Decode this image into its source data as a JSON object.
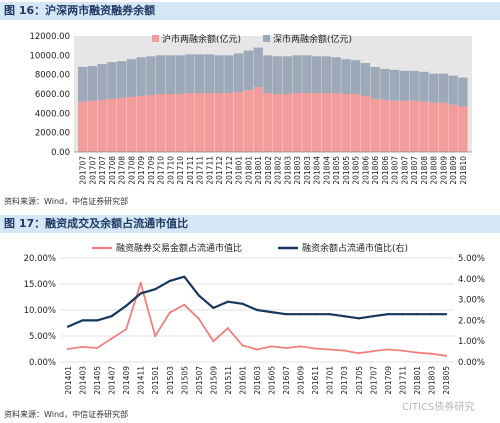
{
  "fig16": {
    "title": "图 16：沪深两市融资融券余额",
    "source": "资料来源：Wind，中信证券研究部"
  },
  "fig17": {
    "title": "图 17：融资成交及余额占流通市值比",
    "source": "资料来源：Wind，中信证券研究部"
  },
  "watermark": "CITICS债券研究",
  "chart_data": [
    {
      "type": "bar",
      "stacked": true,
      "title": "",
      "xlabel": "",
      "ylabel": "",
      "ylim": [
        0,
        12000
      ],
      "yticks": [
        "0.00",
        "2000.00",
        "4000.00",
        "6000.00",
        "8000.00",
        "10000.00",
        "12000.00"
      ],
      "grid": false,
      "legend_position": "top-center",
      "categories": [
        "201707",
        "201707",
        "201707",
        "201708",
        "201708",
        "201708",
        "201709",
        "201709",
        "201710",
        "201710",
        "201710",
        "201711",
        "201711",
        "201711",
        "201712",
        "201712",
        "201801",
        "201801",
        "201801",
        "201802",
        "201802",
        "201803",
        "201803",
        "201803",
        "201804",
        "201804",
        "201805",
        "201805",
        "201805",
        "201806",
        "201806",
        "201806",
        "201807",
        "201807",
        "201807",
        "201808",
        "201808",
        "201809",
        "201809",
        "201810"
      ],
      "series": [
        {
          "name": "沪市两融余额(亿元)",
          "color": "#f29c9c",
          "values": [
            5200,
            5300,
            5400,
            5500,
            5600,
            5700,
            5800,
            5900,
            6000,
            6000,
            6000,
            6100,
            6100,
            6100,
            6100,
            6100,
            6200,
            6400,
            6700,
            6100,
            6000,
            6000,
            6100,
            6100,
            6100,
            6100,
            6100,
            6000,
            6000,
            5800,
            5500,
            5400,
            5300,
            5300,
            5300,
            5200,
            5100,
            5100,
            4900,
            4700
          ]
        },
        {
          "name": "深市两融余额(亿元)",
          "color": "#9da8b8",
          "values": [
            3600,
            3600,
            3700,
            3800,
            3800,
            3900,
            4000,
            4000,
            4000,
            4000,
            4000,
            4000,
            4000,
            4000,
            3900,
            3900,
            4000,
            4100,
            4100,
            3900,
            3900,
            3900,
            3900,
            3900,
            3800,
            3800,
            3700,
            3600,
            3500,
            3400,
            3300,
            3200,
            3200,
            3100,
            3100,
            3100,
            3000,
            3000,
            3000,
            3000
          ]
        }
      ]
    },
    {
      "type": "line",
      "title": "",
      "xlabel": "",
      "ylabel": "",
      "ylim": [
        0,
        20
      ],
      "y2lim": [
        0,
        5
      ],
      "yticks": [
        "0.00%",
        "5.00%",
        "10.00%",
        "15.00%",
        "20.00%"
      ],
      "y2ticks": [
        "0.00%",
        "1.00%",
        "2.00%",
        "3.00%",
        "4.00%",
        "5.00%"
      ],
      "grid": true,
      "legend_position": "top-center",
      "categories": [
        "201401",
        "201403",
        "201405",
        "201407",
        "201409",
        "201411",
        "201501",
        "201503",
        "201505",
        "201507",
        "201509",
        "201511",
        "201601",
        "201603",
        "201605",
        "201607",
        "201609",
        "201611",
        "201701",
        "201703",
        "201705",
        "201707",
        "201709",
        "201711",
        "201801",
        "201803",
        "201805"
      ],
      "series": [
        {
          "name": "融资融券交易金额占流通市值比",
          "axis": "left",
          "color": "#f08080",
          "values": [
            2.5,
            2.9,
            2.7,
            4.5,
            6.3,
            15.2,
            5.0,
            9.5,
            11.0,
            8.3,
            4.0,
            6.5,
            3.2,
            2.4,
            3.0,
            2.7,
            3.0,
            2.6,
            2.4,
            2.2,
            1.7,
            2.1,
            2.4,
            2.2,
            1.8,
            1.6,
            1.2
          ]
        },
        {
          "name": "融资余额占流通市值比(右)",
          "axis": "right",
          "color": "#17375e",
          "values": [
            1.7,
            2.0,
            2.0,
            2.2,
            2.7,
            3.3,
            3.5,
            3.9,
            4.1,
            3.2,
            2.6,
            2.9,
            2.8,
            2.5,
            2.4,
            2.3,
            2.3,
            2.3,
            2.3,
            2.2,
            2.1,
            2.2,
            2.3,
            2.3,
            2.3,
            2.3,
            2.3
          ]
        }
      ]
    }
  ]
}
